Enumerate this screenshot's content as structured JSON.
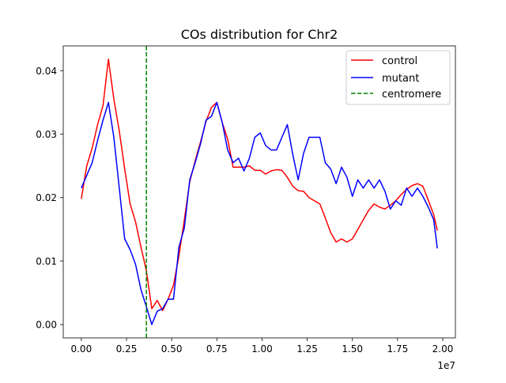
{
  "chart_data": {
    "type": "line",
    "title": "COs distribution for Chr2",
    "xlabel": "",
    "ylabel": "",
    "x_offset_label": "1e7",
    "xlim": [
      -1000000,
      20700000
    ],
    "ylim": [
      -0.0021,
      0.0439
    ],
    "xticks": [
      0,
      2500000,
      5000000,
      7500000,
      10000000,
      12500000,
      15000000,
      17500000,
      20000000
    ],
    "xtick_labels": [
      "0.00",
      "0.25",
      "0.50",
      "0.75",
      "1.00",
      "1.25",
      "1.50",
      "1.75",
      "2.00"
    ],
    "yticks": [
      0.0,
      0.01,
      0.02,
      0.03,
      0.04
    ],
    "ytick_labels": [
      "0.00",
      "0.01",
      "0.02",
      "0.03",
      "0.04"
    ],
    "grid": false,
    "legend_position": "upper right",
    "series": [
      {
        "name": "control",
        "color": "#ff0000",
        "style": "solid",
        "x": [
          0,
          300000,
          600000,
          900000,
          1200000,
          1500000,
          1800000,
          2100000,
          2400000,
          2700000,
          3000000,
          3300000,
          3600000,
          3900000,
          4200000,
          4500000,
          4800000,
          5100000,
          5400000,
          5700000,
          6000000,
          6300000,
          6600000,
          6900000,
          7200000,
          7500000,
          7800000,
          8100000,
          8400000,
          8700000,
          9000000,
          9300000,
          9600000,
          9900000,
          10200000,
          10500000,
          10800000,
          11100000,
          11400000,
          11700000,
          12000000,
          12300000,
          12600000,
          12900000,
          13200000,
          13500000,
          13800000,
          14100000,
          14400000,
          14700000,
          15000000,
          15300000,
          15600000,
          15900000,
          16200000,
          16500000,
          16800000,
          17100000,
          17400000,
          17700000,
          18000000,
          18300000,
          18600000,
          18900000,
          19200000,
          19500000,
          19700000
        ],
        "values": [
          0.0198,
          0.025,
          0.0278,
          0.0315,
          0.0345,
          0.0418,
          0.0355,
          0.0305,
          0.0245,
          0.019,
          0.0162,
          0.0122,
          0.0085,
          0.0025,
          0.0038,
          0.0022,
          0.004,
          0.0062,
          0.0108,
          0.0165,
          0.0225,
          0.0258,
          0.0288,
          0.032,
          0.0342,
          0.035,
          0.0318,
          0.0292,
          0.0248,
          0.0248,
          0.0248,
          0.025,
          0.0243,
          0.0243,
          0.0237,
          0.0242,
          0.0244,
          0.0243,
          0.0232,
          0.0218,
          0.0211,
          0.021,
          0.02,
          0.0195,
          0.019,
          0.0168,
          0.0145,
          0.013,
          0.0135,
          0.013,
          0.0135,
          0.015,
          0.0165,
          0.018,
          0.019,
          0.0185,
          0.0182,
          0.0188,
          0.0195,
          0.0205,
          0.0213,
          0.0219,
          0.0222,
          0.0218,
          0.0196,
          0.0173,
          0.0148
        ]
      },
      {
        "name": "mutant",
        "color": "#0000ff",
        "style": "solid",
        "x": [
          0,
          600000,
          900000,
          1200000,
          1500000,
          1800000,
          2100000,
          2400000,
          2700000,
          3000000,
          3300000,
          3600000,
          3900000,
          4200000,
          4500000,
          4800000,
          5100000,
          5400000,
          5700000,
          6000000,
          6300000,
          6600000,
          6900000,
          7200000,
          7500000,
          7800000,
          8100000,
          8400000,
          8700000,
          9000000,
          9300000,
          9600000,
          9900000,
          10200000,
          10500000,
          10800000,
          11100000,
          11400000,
          11700000,
          12000000,
          12300000,
          12600000,
          12900000,
          13200000,
          13500000,
          13800000,
          14100000,
          14400000,
          14700000,
          15000000,
          15300000,
          15600000,
          15900000,
          16200000,
          16500000,
          16800000,
          17100000,
          17400000,
          17700000,
          18000000,
          18300000,
          18600000,
          18900000,
          19200000,
          19500000,
          19700000
        ],
        "values": [
          0.0215,
          0.0255,
          0.029,
          0.0322,
          0.035,
          0.0295,
          0.0215,
          0.0135,
          0.0118,
          0.0095,
          0.0055,
          0.0028,
          0.0,
          0.0021,
          0.0025,
          0.004,
          0.004,
          0.0122,
          0.0152,
          0.0228,
          0.0255,
          0.0285,
          0.0322,
          0.0328,
          0.035,
          0.0318,
          0.0275,
          0.0255,
          0.0262,
          0.0242,
          0.0262,
          0.0295,
          0.0302,
          0.0282,
          0.0275,
          0.0275,
          0.0295,
          0.0315,
          0.0268,
          0.0228,
          0.027,
          0.0295,
          0.0295,
          0.0295,
          0.0255,
          0.0245,
          0.0222,
          0.0248,
          0.0232,
          0.0202,
          0.0228,
          0.0215,
          0.0228,
          0.0215,
          0.0228,
          0.021,
          0.0182,
          0.0195,
          0.0188,
          0.0215,
          0.0202,
          0.0215,
          0.0202,
          0.0185,
          0.0165,
          0.012
        ]
      }
    ],
    "reference_lines": [
      {
        "name": "centromere",
        "orientation": "vertical",
        "x": 3600000,
        "color": "#008000",
        "style": "dashed"
      }
    ]
  }
}
